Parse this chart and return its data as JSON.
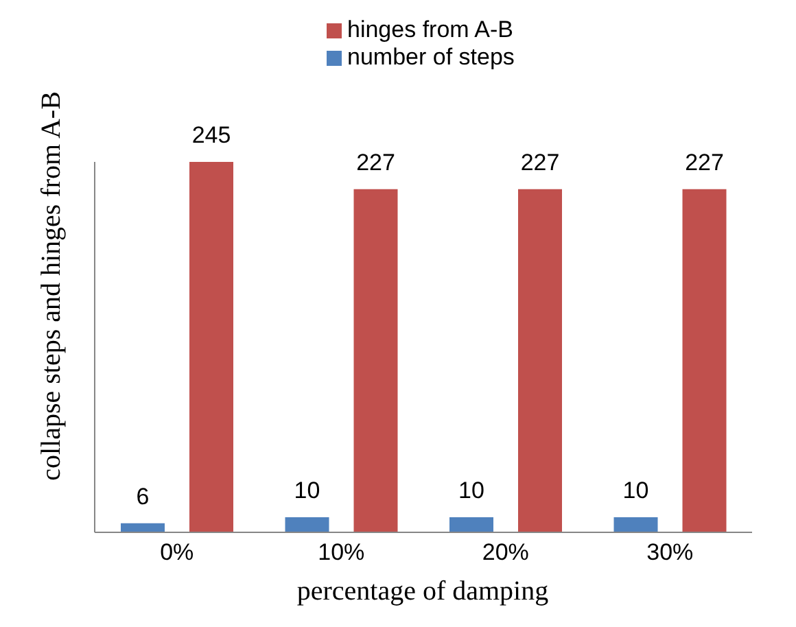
{
  "chart_data": {
    "type": "bar",
    "xlabel": "percentage of damping",
    "ylabel": "collapse steps and hinges from A-B",
    "categories": [
      "0%",
      "10%",
      "20%",
      "30%"
    ],
    "series": [
      {
        "name": "number of steps",
        "color": "#4f81bd",
        "values": [
          6,
          10,
          10,
          10
        ]
      },
      {
        "name": "hinges from A-B",
        "color": "#c0504d",
        "values": [
          245,
          227,
          227,
          227
        ]
      }
    ],
    "data_labels": true,
    "legend": "top",
    "grid": false
  }
}
